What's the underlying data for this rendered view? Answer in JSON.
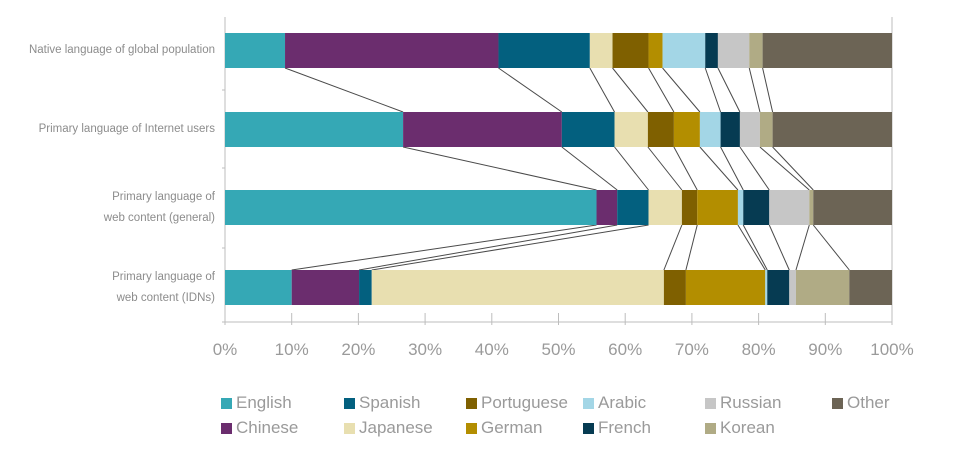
{
  "chart_data": {
    "type": "bar",
    "orientation": "horizontal",
    "stacked": true,
    "title": "",
    "xlabel": "",
    "ylabel": "",
    "xlim": [
      0,
      100
    ],
    "x_tick_labels": [
      "0%",
      "10%",
      "20%",
      "30%",
      "40%",
      "50%",
      "60%",
      "70%",
      "80%",
      "90%",
      "100%"
    ],
    "grid": false,
    "connector_lines": true,
    "legend_position": "bottom",
    "categories": [
      "Native language of global population",
      "Primary language of Internet users",
      "Primary language of web content (general)",
      "Primary language of web content (IDNs)"
    ],
    "category_labels": [
      [
        "Native language of global population"
      ],
      [
        "Primary language of Internet users"
      ],
      [
        "Primary language of",
        "web content (general)"
      ],
      [
        "Primary language of",
        "web content (IDNs)"
      ]
    ],
    "series": [
      {
        "name": "English",
        "color": "#35a8b5",
        "values": [
          9.0,
          26.7,
          55.7,
          10.0
        ]
      },
      {
        "name": "Chinese",
        "color": "#6b2d6e",
        "values": [
          32.0,
          23.8,
          3.1,
          10.1
        ]
      },
      {
        "name": "Spanish",
        "color": "#03607f",
        "values": [
          13.7,
          7.9,
          4.7,
          1.9
        ]
      },
      {
        "name": "Japanese",
        "color": "#e8dfb0",
        "values": [
          3.4,
          5.0,
          5.0,
          43.8
        ]
      },
      {
        "name": "Portuguese",
        "color": "#7f6000",
        "values": [
          5.4,
          3.9,
          2.3,
          3.3
        ]
      },
      {
        "name": "German",
        "color": "#b38e00",
        "values": [
          2.1,
          3.9,
          6.1,
          11.9
        ]
      },
      {
        "name": "Arabic",
        "color": "#a3d6e6",
        "values": [
          6.4,
          3.1,
          0.8,
          0.3
        ]
      },
      {
        "name": "French",
        "color": "#063b52",
        "values": [
          1.9,
          2.9,
          3.9,
          3.3
        ]
      },
      {
        "name": "Russian",
        "color": "#c6c6c6",
        "values": [
          4.7,
          3.0,
          6.0,
          1.0
        ]
      },
      {
        "name": "Korean",
        "color": "#b0ab85",
        "values": [
          2.0,
          1.9,
          0.6,
          8.0
        ]
      },
      {
        "name": "Other",
        "color": "#6c6455",
        "values": [
          19.4,
          17.9,
          11.8,
          6.4
        ]
      }
    ],
    "legend": {
      "rows": [
        [
          "English",
          "Spanish",
          "Portuguese",
          "Arabic",
          "Russian",
          "Other"
        ],
        [
          "Chinese",
          "Japanese",
          "German",
          "French",
          "Korean"
        ]
      ]
    }
  },
  "colors": {
    "axis": "#bdbdbd",
    "connector": "#4a4a4a",
    "label_text": "#8c8c8c"
  }
}
